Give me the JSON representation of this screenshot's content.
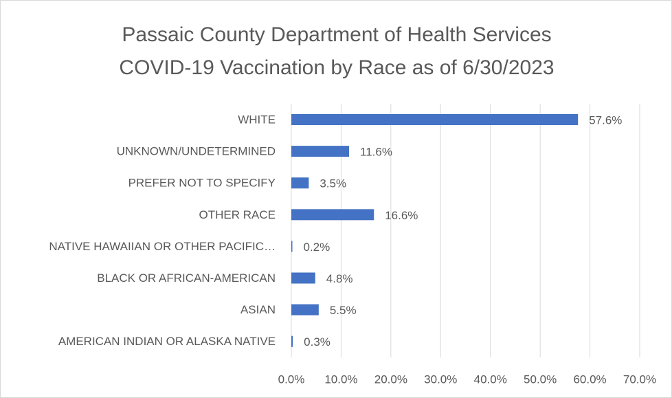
{
  "chart_data": {
    "type": "bar",
    "orientation": "horizontal",
    "title": [
      "Passaic County Department of Health Services",
      "COVID-19 Vaccination by Race as of 6/30/2023"
    ],
    "categories": [
      "WHITE",
      "UNKNOWN/UNDETERMINED",
      "PREFER NOT TO SPECIFY",
      "OTHER RACE",
      "NATIVE HAWAIIAN OR OTHER PACIFIC…",
      "BLACK OR AFRICAN-AMERICAN",
      "ASIAN",
      "AMERICAN INDIAN OR ALASKA NATIVE"
    ],
    "values": [
      57.6,
      11.6,
      3.5,
      16.6,
      0.2,
      4.8,
      5.5,
      0.3
    ],
    "value_labels": [
      "57.6%",
      "11.6%",
      "3.5%",
      "16.6%",
      "0.2%",
      "4.8%",
      "5.5%",
      "0.3%"
    ],
    "color": "#4472c4",
    "xlim": [
      0,
      70
    ],
    "xticks": [
      {
        "value": 0,
        "label": "0.0%"
      },
      {
        "value": 10,
        "label": "10.0%"
      },
      {
        "value": 20,
        "label": "20.0%"
      },
      {
        "value": 30,
        "label": "30.0%"
      },
      {
        "value": 40,
        "label": "40.0%"
      },
      {
        "value": 50,
        "label": "50.0%"
      },
      {
        "value": 60,
        "label": "60.0%"
      },
      {
        "value": 70,
        "label": "70.0%"
      }
    ],
    "grid": true
  }
}
